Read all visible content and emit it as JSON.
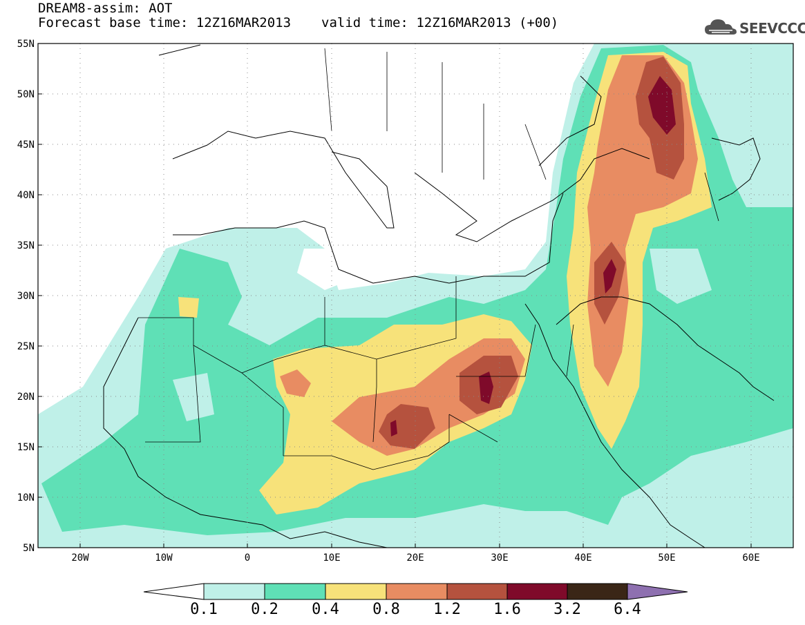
{
  "header": {
    "line1": "DREAM8-assim: AOT",
    "base_label": "Forecast base time: 12Z16MAR2013",
    "valid_label": "valid time: 12Z16MAR2013 (+00)"
  },
  "logo": {
    "text": "SEEVCCC",
    "icon": "cloud-icon"
  },
  "map": {
    "projection": "lat-lon",
    "lon_range": [
      -25,
      65
    ],
    "lat_range": [
      5,
      55
    ],
    "lat_ticks": [
      "55N",
      "50N",
      "45N",
      "40N",
      "35N",
      "30N",
      "25N",
      "20N",
      "15N",
      "10N",
      "5N"
    ],
    "lon_ticks": [
      "20W",
      "10W",
      "0",
      "10E",
      "20E",
      "30E",
      "40E",
      "50E",
      "60E"
    ],
    "gridlines": "dotted"
  },
  "colorbar": {
    "labels": [
      "0.1",
      "0.2",
      "0.4",
      "0.8",
      "1.2",
      "1.6",
      "3.2",
      "6.4"
    ],
    "colors": [
      "#ffffff",
      "#bff0e8",
      "#5fe0b6",
      "#f7e27a",
      "#e88c62",
      "#b5523e",
      "#7f0a2a",
      "#3a2617",
      "#8e70b0"
    ]
  }
}
